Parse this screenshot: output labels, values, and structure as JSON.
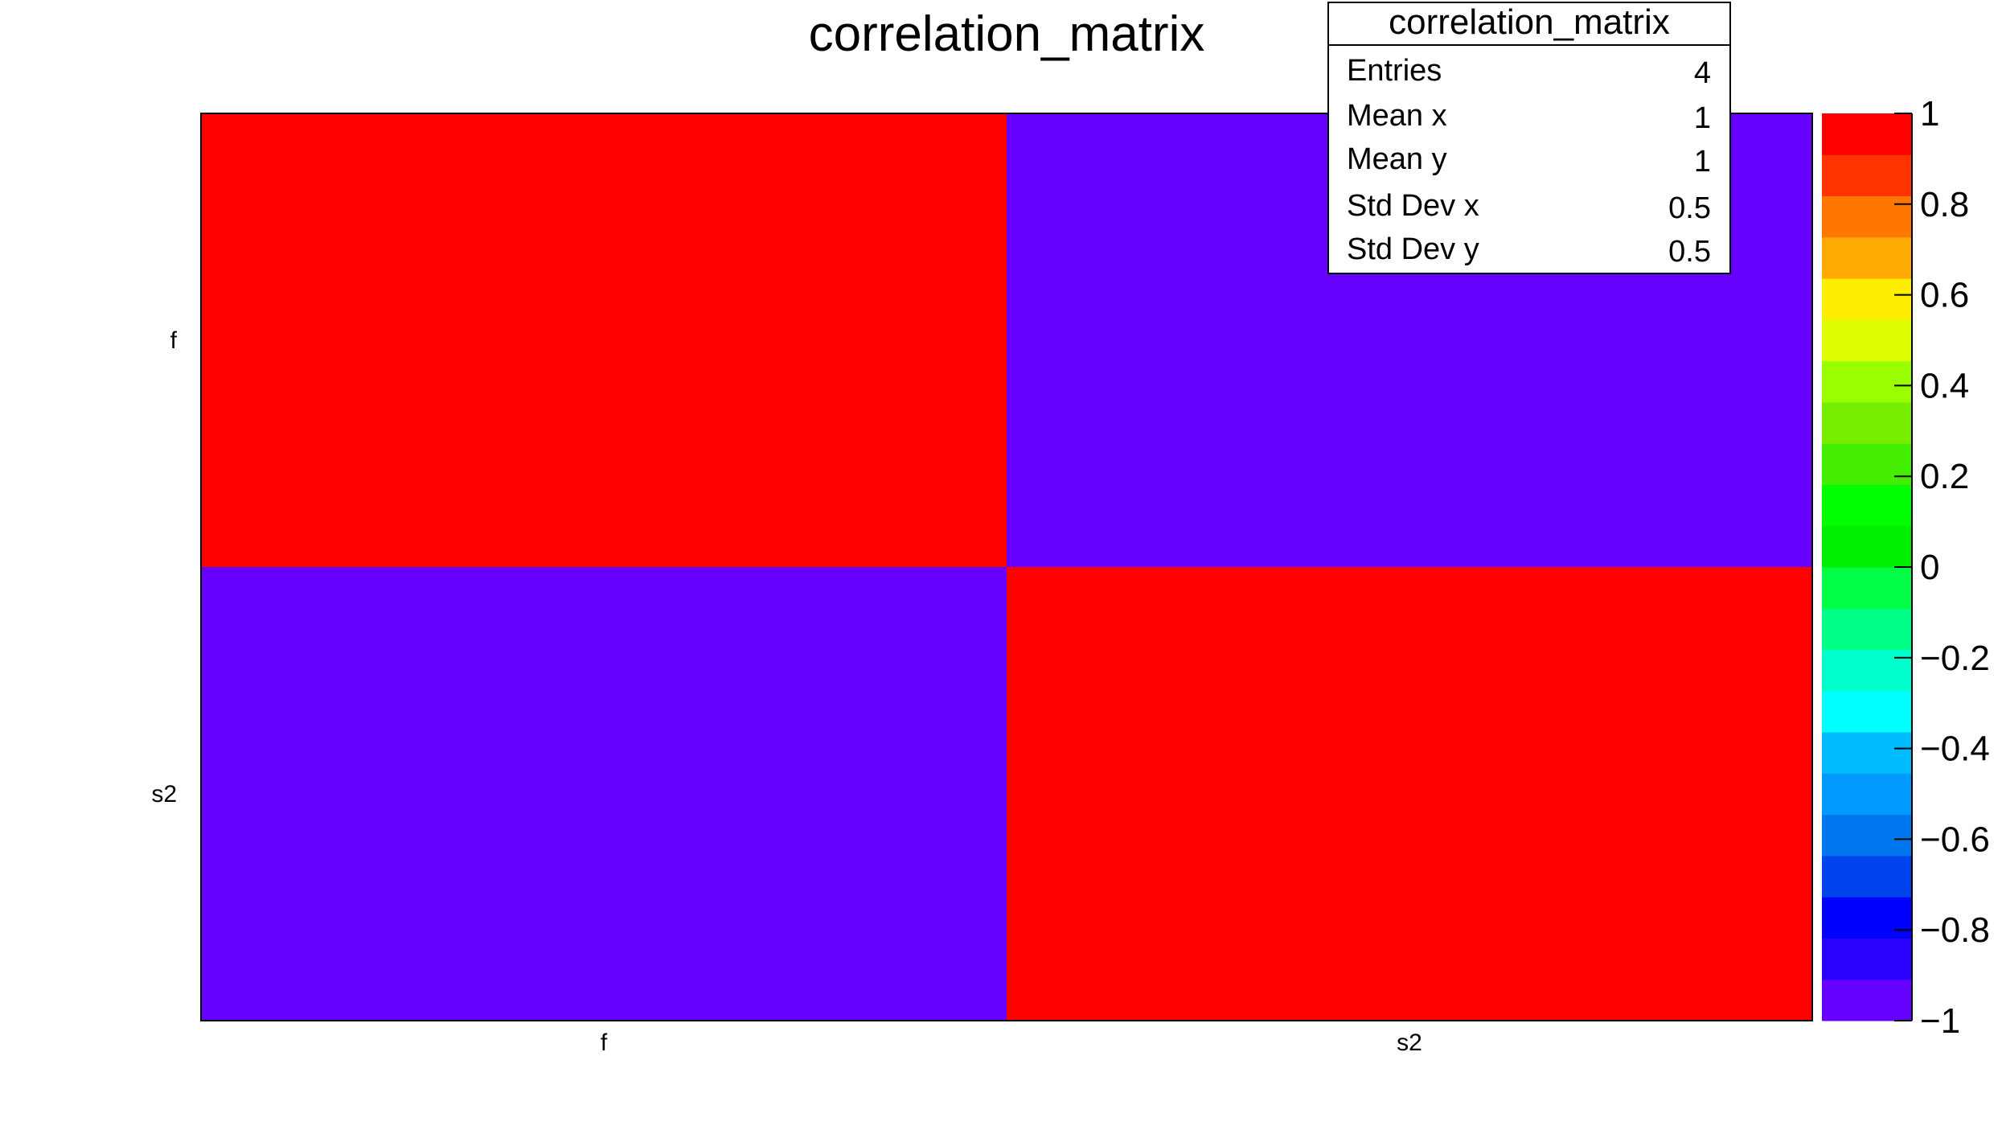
{
  "chart_data": {
    "type": "heatmap",
    "title": "correlation_matrix",
    "x_categories": [
      "f",
      "s2"
    ],
    "y_categories": [
      "f",
      "s2"
    ],
    "values": [
      [
        1,
        -1
      ],
      [
        -1,
        1
      ]
    ],
    "zlim": [
      -1,
      1
    ],
    "z_ticks": [
      "1",
      "0.8",
      "0.6",
      "0.4",
      "0.2",
      "0",
      "−0.2",
      "−0.4",
      "−0.6",
      "−0.8",
      "−1"
    ],
    "palette": [
      "#6600ff",
      "#2a00ff",
      "#0000ff",
      "#0044ee",
      "#0077ee",
      "#0099ff",
      "#00bbff",
      "#00ffff",
      "#00ffcc",
      "#00ff88",
      "#00ff44",
      "#00ee00",
      "#00ff00",
      "#44ee00",
      "#77ee00",
      "#99ff00",
      "#ddff00",
      "#ffee00",
      "#ffaa00",
      "#ff7700",
      "#ff3300",
      "#ff0000"
    ],
    "stats_box": {
      "title": "correlation_matrix",
      "rows": [
        {
          "label": "Entries",
          "value": "4"
        },
        {
          "label": "Mean x",
          "value": "1"
        },
        {
          "label": "Mean y",
          "value": "1"
        },
        {
          "label": "Std Dev x",
          "value": "0.5"
        },
        {
          "label": "Std Dev y",
          "value": "0.5"
        }
      ]
    }
  }
}
